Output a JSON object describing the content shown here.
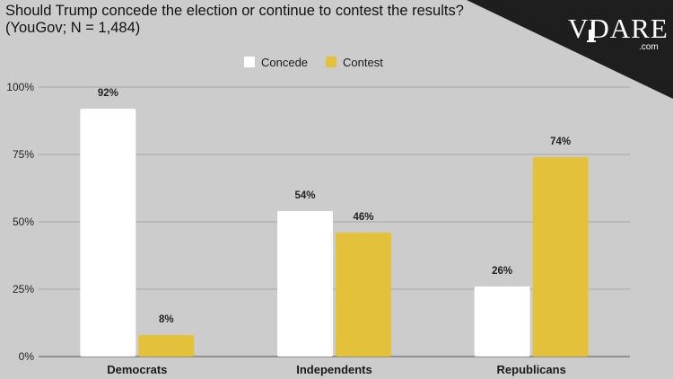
{
  "title_line1": "Should Trump concede the election or continue to contest the results?",
  "title_line2": "(YouGov; N = 1,484)",
  "logo": {
    "text": "VDARE",
    "subtext": ".com"
  },
  "colors": {
    "background": "#cccccc",
    "concede": "#ffffff",
    "contest": "#e3c13b",
    "grid": "#a6a6a6",
    "text": "#222222",
    "logo_triangle": "#1e1e1e"
  },
  "chart_data": {
    "type": "bar",
    "categories": [
      "Democrats",
      "Independents",
      "Republicans"
    ],
    "series": [
      {
        "name": "Concede",
        "values": [
          92,
          54,
          26
        ],
        "color": "#ffffff"
      },
      {
        "name": "Contest",
        "values": [
          8,
          46,
          74
        ],
        "color": "#e3c13b"
      }
    ],
    "ylim": [
      0,
      100
    ],
    "yticks": [
      "0%",
      "25%",
      "50%",
      "75%",
      "100%"
    ],
    "data_labels": [
      [
        "92%",
        "54%",
        "26%"
      ],
      [
        "8%",
        "46%",
        "74%"
      ]
    ],
    "legend": "top-center",
    "grid": true
  }
}
